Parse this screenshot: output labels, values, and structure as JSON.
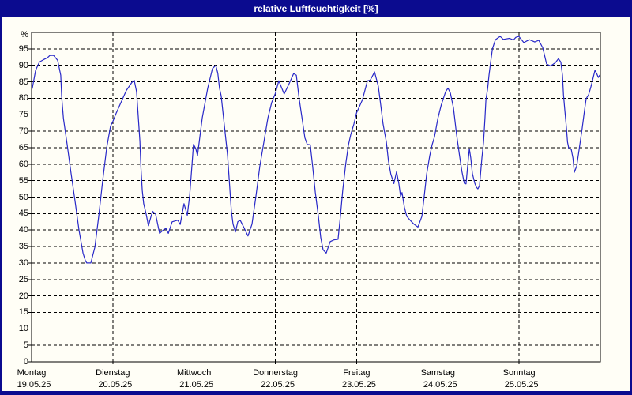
{
  "window": {
    "title": "relative Luftfeuchtigkeit [%]",
    "title_bar_color": "#0b0b8f",
    "frame_color": "#0b0b8f",
    "canvas_color": "#fffef6"
  },
  "chart_data": {
    "type": "line",
    "title": "relative Luftfeuchtigkeit [%]",
    "ylabel": "%",
    "ylim": [
      0,
      100
    ],
    "yticks": [
      0,
      5,
      10,
      15,
      20,
      25,
      30,
      35,
      40,
      45,
      50,
      55,
      60,
      65,
      70,
      75,
      80,
      85,
      90,
      95
    ],
    "grid": "dashed-black",
    "legend": "none",
    "line_color": "#2828c8",
    "x_axis": {
      "unit": "hours",
      "total_hours": 168,
      "day_width_hours": 24,
      "days": [
        {
          "name": "Montag",
          "date": "19.05.25"
        },
        {
          "name": "Dienstag",
          "date": "20.05.25"
        },
        {
          "name": "Mittwoch",
          "date": "21.05.25"
        },
        {
          "name": "Donnerstag",
          "date": "22.05.25"
        },
        {
          "name": "Freitag",
          "date": "23.05.25"
        },
        {
          "name": "Samstag",
          "date": "24.05.25"
        },
        {
          "name": "Sonntag",
          "date": "25.05.25"
        }
      ]
    },
    "series": [
      {
        "name": "relative Luftfeuchtigkeit",
        "unit": "%",
        "points_hours_value": [
          [
            0.2,
            83
          ],
          [
            1.2,
            88.5
          ],
          [
            2.3,
            91
          ],
          [
            3.5,
            91.7
          ],
          [
            4.7,
            92.3
          ],
          [
            5.4,
            93
          ],
          [
            6.5,
            93
          ],
          [
            7.7,
            91.5
          ],
          [
            8.6,
            87
          ],
          [
            8.9,
            80.4
          ],
          [
            9.4,
            73.9
          ],
          [
            10.5,
            66
          ],
          [
            11.7,
            57
          ],
          [
            12.8,
            49
          ],
          [
            14,
            40
          ],
          [
            15.2,
            33
          ],
          [
            15.9,
            30.7
          ],
          [
            16.3,
            30
          ],
          [
            17.5,
            30
          ],
          [
            18.7,
            34.8
          ],
          [
            19.8,
            44
          ],
          [
            21,
            55
          ],
          [
            22.2,
            65
          ],
          [
            23.3,
            71.5
          ],
          [
            24,
            73
          ],
          [
            25,
            75.5
          ],
          [
            26.4,
            78.7
          ],
          [
            28,
            82.4
          ],
          [
            29.6,
            84.8
          ],
          [
            30.3,
            85.5
          ],
          [
            31,
            82
          ],
          [
            31.5,
            74.5
          ],
          [
            32,
            67
          ],
          [
            32.3,
            59
          ],
          [
            32.7,
            52
          ],
          [
            33.1,
            48
          ],
          [
            33.8,
            45
          ],
          [
            34.5,
            41.3
          ],
          [
            35.7,
            45.7
          ],
          [
            36.6,
            44.9
          ],
          [
            37.8,
            39
          ],
          [
            39,
            40.1
          ],
          [
            39.7,
            40.5
          ],
          [
            40.4,
            39
          ],
          [
            41.5,
            42.5
          ],
          [
            43.2,
            43
          ],
          [
            43.9,
            41.7
          ],
          [
            45,
            48
          ],
          [
            46,
            44.5
          ],
          [
            46.7,
            50.5
          ],
          [
            47.4,
            60
          ],
          [
            47.8,
            66
          ],
          [
            48.5,
            64.7
          ],
          [
            49,
            62.6
          ],
          [
            50.4,
            74
          ],
          [
            52,
            83
          ],
          [
            53.4,
            89
          ],
          [
            54.4,
            90
          ],
          [
            55,
            87.6
          ],
          [
            55.5,
            83
          ],
          [
            56,
            80.7
          ],
          [
            56.9,
            72
          ],
          [
            57.9,
            62.6
          ],
          [
            58.6,
            52
          ],
          [
            59,
            45.7
          ],
          [
            59.5,
            41.8
          ],
          [
            60.2,
            39.4
          ],
          [
            60.9,
            42.5
          ],
          [
            61.6,
            43
          ],
          [
            62.8,
            40.6
          ],
          [
            63.9,
            38.2
          ],
          [
            65.1,
            41.8
          ],
          [
            66.3,
            50.5
          ],
          [
            67.4,
            59.4
          ],
          [
            68.6,
            66.7
          ],
          [
            69.8,
            74
          ],
          [
            70.9,
            78.7
          ],
          [
            72,
            81.5
          ],
          [
            73,
            85.3
          ],
          [
            74.6,
            81.3
          ],
          [
            76,
            84.3
          ],
          [
            77.4,
            87.5
          ],
          [
            78.2,
            87
          ],
          [
            79,
            80
          ],
          [
            80,
            73
          ],
          [
            80.7,
            68
          ],
          [
            81.4,
            66
          ],
          [
            82.3,
            65.9
          ],
          [
            83,
            59.5
          ],
          [
            83.8,
            51.5
          ],
          [
            84.7,
            44.2
          ],
          [
            85.4,
            37.7
          ],
          [
            86.1,
            34
          ],
          [
            87,
            33
          ],
          [
            88.2,
            36.5
          ],
          [
            89.3,
            37
          ],
          [
            90.5,
            37.2
          ],
          [
            91.2,
            44.2
          ],
          [
            91.9,
            52.2
          ],
          [
            92.8,
            60.2
          ],
          [
            93.6,
            65.9
          ],
          [
            94.3,
            69.1
          ],
          [
            95.2,
            72.2
          ],
          [
            96,
            75.6
          ],
          [
            97.7,
            79.5
          ],
          [
            99.2,
            85.3
          ],
          [
            100,
            85.5
          ],
          [
            100.8,
            87
          ],
          [
            101.3,
            88
          ],
          [
            102.4,
            83.6
          ],
          [
            103.1,
            78
          ],
          [
            103.8,
            72.2
          ],
          [
            104.8,
            66.7
          ],
          [
            105.4,
            61
          ],
          [
            106.1,
            57
          ],
          [
            107,
            54.1
          ],
          [
            107.8,
            57.7
          ],
          [
            108.5,
            53.9
          ],
          [
            109,
            50.2
          ],
          [
            109.4,
            51.4
          ],
          [
            110.1,
            46.9
          ],
          [
            110.8,
            44.2
          ],
          [
            111.8,
            43
          ],
          [
            112.9,
            41.8
          ],
          [
            114.1,
            40.9
          ],
          [
            115.3,
            44.2
          ],
          [
            116,
            50.5
          ],
          [
            116.7,
            57
          ],
          [
            117.6,
            62.6
          ],
          [
            118.3,
            65.9
          ],
          [
            119,
            68.3
          ],
          [
            120,
            73.9
          ],
          [
            121,
            78
          ],
          [
            122.3,
            82
          ],
          [
            123,
            83.1
          ],
          [
            123.7,
            81.6
          ],
          [
            124.6,
            77.1
          ],
          [
            125.5,
            69.1
          ],
          [
            126.4,
            62.6
          ],
          [
            127.1,
            57.8
          ],
          [
            127.8,
            54.2
          ],
          [
            128.3,
            54
          ],
          [
            128.8,
            59.5
          ],
          [
            129.3,
            64.7
          ],
          [
            129.7,
            61.9
          ],
          [
            130.2,
            57.1
          ],
          [
            130.9,
            54.2
          ],
          [
            131.4,
            53
          ],
          [
            131.8,
            52.5
          ],
          [
            132.3,
            53.5
          ],
          [
            132.6,
            57.1
          ],
          [
            133,
            61.9
          ],
          [
            133.5,
            66.7
          ],
          [
            133.9,
            74
          ],
          [
            134.2,
            79.5
          ],
          [
            134.7,
            83
          ],
          [
            135.1,
            87
          ],
          [
            135.6,
            91
          ],
          [
            136.1,
            95
          ],
          [
            137,
            97.8
          ],
          [
            137.7,
            98.3
          ],
          [
            138.4,
            98.8
          ],
          [
            139.3,
            97.9
          ],
          [
            140,
            98
          ],
          [
            141.2,
            98.2
          ],
          [
            142.3,
            97.7
          ],
          [
            143,
            98.5
          ],
          [
            143.9,
            98.8
          ],
          [
            145.4,
            96.9
          ],
          [
            147,
            97.8
          ],
          [
            148.6,
            97.1
          ],
          [
            149.8,
            97.6
          ],
          [
            151,
            95.3
          ],
          [
            152.1,
            90.4
          ],
          [
            153.3,
            89.8
          ],
          [
            154.7,
            90.8
          ],
          [
            155.6,
            92
          ],
          [
            156.3,
            91
          ],
          [
            156.8,
            87
          ],
          [
            157.1,
            81
          ],
          [
            157.5,
            76.3
          ],
          [
            158,
            70.8
          ],
          [
            158.3,
            66.7
          ],
          [
            158.7,
            64.7
          ],
          [
            159.4,
            64.5
          ],
          [
            159.9,
            61.8
          ],
          [
            160.3,
            57.5
          ],
          [
            161,
            59.4
          ],
          [
            161.7,
            64.3
          ],
          [
            162.6,
            70.8
          ],
          [
            163.3,
            76.3
          ],
          [
            163.8,
            79.9
          ],
          [
            164.5,
            81
          ],
          [
            165.2,
            83.5
          ],
          [
            165.7,
            85.5
          ],
          [
            166.4,
            88.5
          ],
          [
            166.9,
            87.5
          ],
          [
            167.4,
            86.3
          ],
          [
            167.8,
            87
          ]
        ]
      }
    ]
  }
}
